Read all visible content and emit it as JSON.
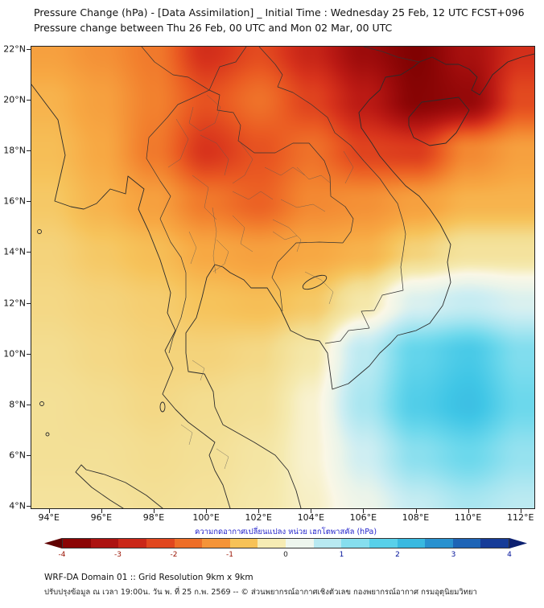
{
  "header": {
    "title_line1": "Pressure Change (hPa) - [Data Assimilation] _ Initial Time : Wednesday 25 Feb, 12 UTC FCST+096",
    "title_line2": "Pressure change between Thu 26 Feb, 00 UTC and Mon 02 Mar, 00 UTC"
  },
  "axes": {
    "lat_labels": [
      "22°N",
      "20°N",
      "18°N",
      "16°N",
      "14°N",
      "12°N",
      "10°N",
      "8°N",
      "6°N",
      "4°N"
    ],
    "lon_labels": [
      "94°E",
      "96°E",
      "98°E",
      "100°E",
      "102°E",
      "104°E",
      "106°E",
      "108°E",
      "110°E",
      "112°E"
    ]
  },
  "colorbar": {
    "label": "ความกดอากาศเปลี่ยนแปลง หน่วย เฮกโตพาสคัล (hPa)",
    "label_color": "#2323cc",
    "tick_labels": [
      "-4",
      "-3",
      "-2",
      "-1",
      "0",
      "1",
      "2",
      "3",
      "4"
    ],
    "negative_tick_color": "#991100",
    "zero_tick_color": "#222222",
    "positive_tick_color": "#001199",
    "left_arrow_color": "#600000",
    "right_arrow_color": "#0c2070",
    "segment_colors": [
      "#8b0505",
      "#ac1210",
      "#ca2718",
      "#e1471f",
      "#ee6e28",
      "#f59438",
      "#f7c257",
      "#f6ecb4",
      "#eef6ee",
      "#b8e9f1",
      "#86deee",
      "#58d0e9",
      "#39b9e0",
      "#2991cf",
      "#1e64b6",
      "#163c98"
    ]
  },
  "footer": {
    "line1": "WRF-DA Domain 01 :: Grid Resolution 9km x 9km",
    "line2": "ปรับปรุงข้อมูล ณ เวลา 19:00น. วัน พ. ที่ 25 ก.พ. 2569 -- © ส่วนพยากรณ์อากาศเชิงตัวเลข กองพยากรณ์อากาศ กรมอุตุนิยมวิทยา"
  },
  "palette": {
    "stops": [
      {
        "v": -4.0,
        "c": "#7a0000"
      },
      {
        "v": -3.5,
        "c": "#9c0b0b"
      },
      {
        "v": -3.0,
        "c": "#bb1a14"
      },
      {
        "v": -2.5,
        "c": "#d8341c"
      },
      {
        "v": -2.0,
        "c": "#ea5a22"
      },
      {
        "v": -1.5,
        "c": "#f2812e"
      },
      {
        "v": -1.0,
        "c": "#f7a843"
      },
      {
        "v": -0.75,
        "c": "#f6c35b"
      },
      {
        "v": -0.5,
        "c": "#f3dd90"
      },
      {
        "v": -0.25,
        "c": "#f5eab0"
      },
      {
        "v": 0.0,
        "c": "#faf7e6"
      },
      {
        "v": 0.25,
        "c": "#eaf4ea"
      },
      {
        "v": 0.5,
        "c": "#cfeef2"
      },
      {
        "v": 1.0,
        "c": "#a0e4f0"
      },
      {
        "v": 1.5,
        "c": "#6cd8ec"
      },
      {
        "v": 2.0,
        "c": "#40c6e6"
      },
      {
        "v": 2.5,
        "c": "#2fa9da"
      },
      {
        "v": 3.0,
        "c": "#2379c4"
      },
      {
        "v": 3.5,
        "c": "#1a4fa8"
      },
      {
        "v": 4.0,
        "c": "#123089"
      }
    ]
  },
  "chart_data": {
    "type": "heatmap",
    "title": "Pressure Change (hPa) - [Data Assimilation] _ Initial Time : Wednesday 25 Feb, 12 UTC FCST+096",
    "subtitle": "Pressure change between Thu 26 Feb, 00 UTC and Mon 02 Mar, 00 UTC",
    "units": "hPa",
    "value_range": [
      -4,
      4
    ],
    "contour_step": 0.5,
    "x": [
      94,
      96,
      98,
      100,
      102,
      104,
      106,
      108,
      110,
      112
    ],
    "y": [
      22,
      20,
      18,
      16,
      14,
      12,
      10,
      8,
      6,
      4
    ],
    "values": [
      [
        -1.1,
        -1.3,
        -1.6,
        -2.6,
        -2.2,
        -2.8,
        -3.5,
        -3.9,
        -3.3,
        -2.6
      ],
      [
        -0.9,
        -1.1,
        -1.5,
        -2.1,
        -1.7,
        -2.3,
        -3.0,
        -3.8,
        -3.6,
        -2.2
      ],
      [
        -0.8,
        -1.0,
        -1.6,
        -2.5,
        -2.1,
        -1.7,
        -2.3,
        -2.4,
        -1.4,
        -1.1
      ],
      [
        -0.7,
        -0.9,
        -1.1,
        -1.6,
        -1.9,
        -1.4,
        -1.3,
        -1.1,
        -0.9,
        -0.9
      ],
      [
        -0.6,
        -0.7,
        -0.8,
        -1.0,
        -1.1,
        -1.0,
        -0.9,
        -0.6,
        -0.4,
        -0.4
      ],
      [
        -0.55,
        -0.6,
        -0.65,
        -0.75,
        -0.8,
        -0.7,
        -0.3,
        0.4,
        0.6,
        0.4
      ],
      [
        -0.5,
        -0.55,
        -0.6,
        -0.6,
        -0.55,
        -0.3,
        0.7,
        1.6,
        1.9,
        1.3
      ],
      [
        -0.45,
        -0.5,
        -0.55,
        -0.5,
        -0.45,
        -0.1,
        0.9,
        1.8,
        2.1,
        1.5
      ],
      [
        -0.45,
        -0.45,
        -0.5,
        -0.45,
        -0.35,
        -0.1,
        0.5,
        1.2,
        1.5,
        1.1
      ],
      [
        -0.4,
        -0.4,
        -0.45,
        -0.4,
        -0.3,
        -0.15,
        0.2,
        0.6,
        0.9,
        0.7
      ]
    ]
  }
}
